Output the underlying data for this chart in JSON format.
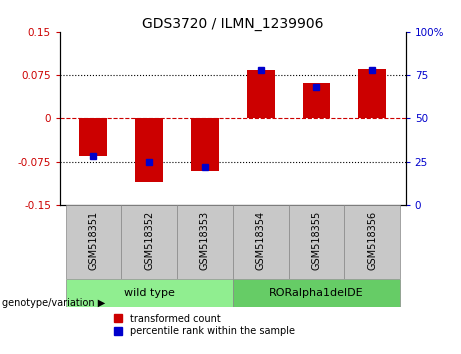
{
  "title": "GDS3720 / ILMN_1239906",
  "samples": [
    "GSM518351",
    "GSM518352",
    "GSM518353",
    "GSM518354",
    "GSM518355",
    "GSM518356"
  ],
  "red_values": [
    -0.065,
    -0.11,
    -0.092,
    0.083,
    0.062,
    0.085
  ],
  "blue_percentiles": [
    28,
    25,
    22,
    78,
    68,
    78
  ],
  "ylim_left": [
    -0.15,
    0.15
  ],
  "ylim_right": [
    0,
    100
  ],
  "yticks_left": [
    -0.15,
    -0.075,
    0,
    0.075,
    0.15
  ],
  "yticks_right": [
    0,
    25,
    50,
    75,
    100
  ],
  "red_color": "#CC0000",
  "blue_color": "#0000CC",
  "bar_width": 0.5,
  "blue_marker_size": 5,
  "legend_label_red": "transformed count",
  "legend_label_blue": "percentile rank within the sample",
  "genotype_label": "genotype/variation",
  "bg_white": "#ffffff",
  "bg_grey": "#c8c8c8",
  "bg_green_light": "#90EE90",
  "bg_green_dark": "#66CC66",
  "group1_label": "wild type",
  "group2_label": "RORalpha1delDE"
}
